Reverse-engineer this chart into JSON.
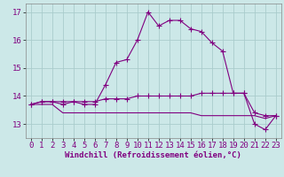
{
  "xlabel": "Windchill (Refroidissement éolien,°C)",
  "ylabel": "",
  "bg_color": "#cce8e8",
  "grid_color": "#aacccc",
  "line_color": "#800080",
  "x_values": [
    0,
    1,
    2,
    3,
    4,
    5,
    6,
    7,
    8,
    9,
    10,
    11,
    12,
    13,
    14,
    15,
    16,
    17,
    18,
    19,
    20,
    21,
    22,
    23
  ],
  "line1": [
    13.7,
    13.8,
    13.8,
    13.7,
    13.8,
    13.7,
    13.7,
    14.4,
    15.2,
    15.3,
    16.0,
    17.0,
    16.5,
    16.7,
    16.7,
    16.4,
    16.3,
    15.9,
    15.6,
    14.1,
    14.1,
    13.0,
    12.8,
    13.3
  ],
  "line2": [
    13.7,
    13.8,
    13.8,
    13.8,
    13.8,
    13.8,
    13.8,
    13.9,
    13.9,
    13.9,
    14.0,
    14.0,
    14.0,
    14.0,
    14.0,
    14.0,
    14.1,
    14.1,
    14.1,
    14.1,
    14.1,
    13.4,
    13.3,
    13.3
  ],
  "line3": [
    13.7,
    13.7,
    13.7,
    13.4,
    13.4,
    13.4,
    13.4,
    13.4,
    13.4,
    13.4,
    13.4,
    13.4,
    13.4,
    13.4,
    13.4,
    13.4,
    13.3,
    13.3,
    13.3,
    13.3,
    13.3,
    13.3,
    13.2,
    13.3
  ],
  "ylim": [
    12.5,
    17.3
  ],
  "yticks": [
    13,
    14,
    15,
    16,
    17
  ],
  "xticks": [
    0,
    1,
    2,
    3,
    4,
    5,
    6,
    7,
    8,
    9,
    10,
    11,
    12,
    13,
    14,
    15,
    16,
    17,
    18,
    19,
    20,
    21,
    22,
    23
  ],
  "marker": "+",
  "linewidth": 0.8,
  "marker_size": 4,
  "xlabel_fontsize": 6.5,
  "tick_fontsize": 6.5,
  "ylabel_fontsize": 7
}
